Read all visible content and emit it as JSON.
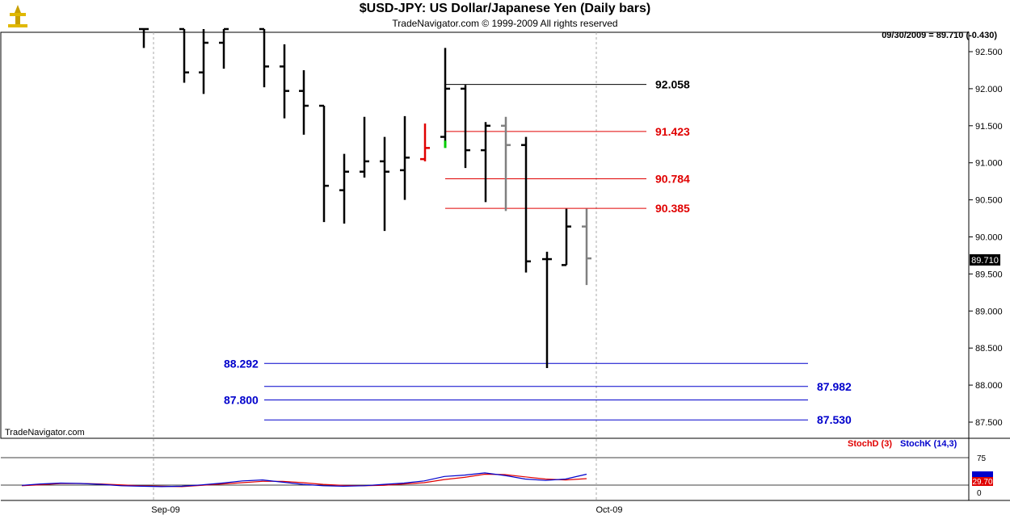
{
  "header": {
    "title": "$USD-JPY:  US Dollar/Japanese Yen  (Daily bars)",
    "subtitle": "TradeNavigator.com © 1999-2009 All rights reserved",
    "last_info": "09/30/2009 = 89.710 (-0.430)",
    "brand": "TradeNavigator.com"
  },
  "indicator": {
    "stochd_label": "StochD (3)",
    "stochk_label": "StochK (14,3)",
    "level_75": "75",
    "level_0": "0",
    "value_label": "29.70"
  },
  "colors": {
    "up": "#000000",
    "down_red": "#e00000",
    "pending_gray": "#808080",
    "green": "#00cc00",
    "fib_red": "#e00000",
    "fib_blue": "#0000cc",
    "stochK": "#0000cc",
    "stochD": "#e00000"
  },
  "chart_data": {
    "type": "ohlc",
    "title": "$USD-JPY:  US Dollar/Japanese Yen  (Daily bars)",
    "ylim": [
      87.3,
      92.85
    ],
    "y_ticks": [
      "92.500",
      "92.000",
      "91.500",
      "91.000",
      "90.500",
      "90.000",
      "89.500",
      "89.000",
      "88.500",
      "88.000",
      "87.500"
    ],
    "x_ticks": [
      "Sep-09",
      "Oct-09"
    ],
    "last_price_label": "89.710",
    "bars": [
      {
        "x": 178,
        "o": 92.85,
        "h": 92.85,
        "l": 92.55,
        "c": 92.85,
        "color": "black"
      },
      {
        "x": 228,
        "o": 92.85,
        "h": 92.85,
        "l": 92.08,
        "c": 92.22,
        "color": "black"
      },
      {
        "x": 252,
        "o": 92.22,
        "h": 92.85,
        "l": 91.93,
        "c": 92.62,
        "color": "black"
      },
      {
        "x": 277,
        "o": 92.62,
        "h": 92.85,
        "l": 92.27,
        "c": 92.85,
        "color": "black"
      },
      {
        "x": 327,
        "o": 92.85,
        "h": 92.85,
        "l": 92.02,
        "c": 92.3,
        "color": "black"
      },
      {
        "x": 352,
        "o": 92.3,
        "h": 92.6,
        "l": 91.6,
        "c": 91.97,
        "color": "black"
      },
      {
        "x": 376,
        "o": 91.97,
        "h": 92.25,
        "l": 91.38,
        "c": 91.77,
        "color": "black"
      },
      {
        "x": 401,
        "o": 91.77,
        "h": 91.77,
        "l": 90.2,
        "c": 90.69,
        "color": "black"
      },
      {
        "x": 426,
        "o": 90.63,
        "h": 91.12,
        "l": 90.18,
        "c": 90.88,
        "color": "black"
      },
      {
        "x": 451,
        "o": 90.88,
        "h": 91.62,
        "l": 90.8,
        "c": 91.02,
        "color": "black"
      },
      {
        "x": 476,
        "o": 91.02,
        "h": 91.35,
        "l": 90.08,
        "c": 90.88,
        "color": "black"
      },
      {
        "x": 501,
        "o": 90.9,
        "h": 91.63,
        "l": 90.5,
        "c": 91.07,
        "color": "black"
      },
      {
        "x": 526,
        "o": 91.05,
        "h": 91.53,
        "l": 91.02,
        "c": 91.2,
        "color": "red"
      },
      {
        "x": 551,
        "o": 91.35,
        "h": 92.55,
        "l": 91.22,
        "c": 92.0,
        "color": "black"
      },
      {
        "x": 576,
        "o": 92.0,
        "h": 92.05,
        "l": 90.93,
        "c": 91.17,
        "color": "black"
      },
      {
        "x": 601,
        "o": 91.17,
        "h": 91.55,
        "l": 90.47,
        "c": 91.5,
        "color": "black"
      },
      {
        "x": 626,
        "o": 91.5,
        "h": 91.62,
        "l": 90.35,
        "c": 91.24,
        "color": "gray"
      },
      {
        "x": 651,
        "o": 91.24,
        "h": 91.35,
        "l": 89.52,
        "c": 89.67,
        "color": "black"
      },
      {
        "x": 677,
        "o": 89.7,
        "h": 89.8,
        "l": 88.23,
        "c": 89.7,
        "color": "black"
      },
      {
        "x": 701,
        "o": 89.62,
        "h": 90.38,
        "l": 89.62,
        "c": 90.14,
        "color": "black"
      },
      {
        "x": 726,
        "o": 90.14,
        "h": 90.38,
        "l": 89.35,
        "c": 89.71,
        "color": "gray"
      }
    ],
    "fib_lines": [
      {
        "value": 92.058,
        "label": "92.058",
        "color": "black",
        "x1": 551,
        "x2": 800,
        "label_side": "right"
      },
      {
        "value": 91.423,
        "label": "91.423",
        "color": "red",
        "x1": 551,
        "x2": 800,
        "label_side": "right"
      },
      {
        "value": 90.784,
        "label": "90.784",
        "color": "red",
        "x1": 551,
        "x2": 800,
        "label_side": "right"
      },
      {
        "value": 90.385,
        "label": "90.385",
        "color": "red",
        "x1": 551,
        "x2": 800,
        "label_side": "right"
      },
      {
        "value": 88.292,
        "label": "88.292",
        "color": "blue",
        "x1": 327,
        "x2": 1000,
        "label_side": "left"
      },
      {
        "value": 87.982,
        "label": "87.982",
        "color": "blue",
        "x1": 327,
        "x2": 1000,
        "label_side": "right"
      },
      {
        "value": 87.8,
        "label": "87.800",
        "color": "blue",
        "x1": 327,
        "x2": 1000,
        "label_side": "left"
      },
      {
        "value": 87.53,
        "label": "87.530",
        "color": "blue",
        "x1": 327,
        "x2": 1000,
        "label_side": "right"
      }
    ],
    "stochastic": {
      "ylim": [
        0,
        100
      ],
      "x": [
        27,
        50,
        75,
        100,
        125,
        150,
        175,
        200,
        225,
        250,
        275,
        300,
        325,
        350,
        375,
        400,
        425,
        450,
        475,
        500,
        525,
        550,
        575,
        600,
        625,
        650,
        675,
        700,
        726
      ],
      "stochK": [
        5,
        8,
        10,
        9,
        7,
        4,
        3,
        2,
        3,
        6,
        10,
        15,
        17,
        12,
        7,
        4,
        3,
        4,
        7,
        10,
        15,
        25,
        28,
        33,
        27,
        19,
        16,
        19,
        30
      ],
      "stochD": [
        4,
        6,
        9,
        9,
        8,
        6,
        4,
        3,
        2,
        5,
        8,
        11,
        14,
        14,
        11,
        7,
        5,
        4,
        5,
        8,
        11,
        18,
        23,
        30,
        29,
        24,
        19,
        17,
        20
      ]
    }
  }
}
